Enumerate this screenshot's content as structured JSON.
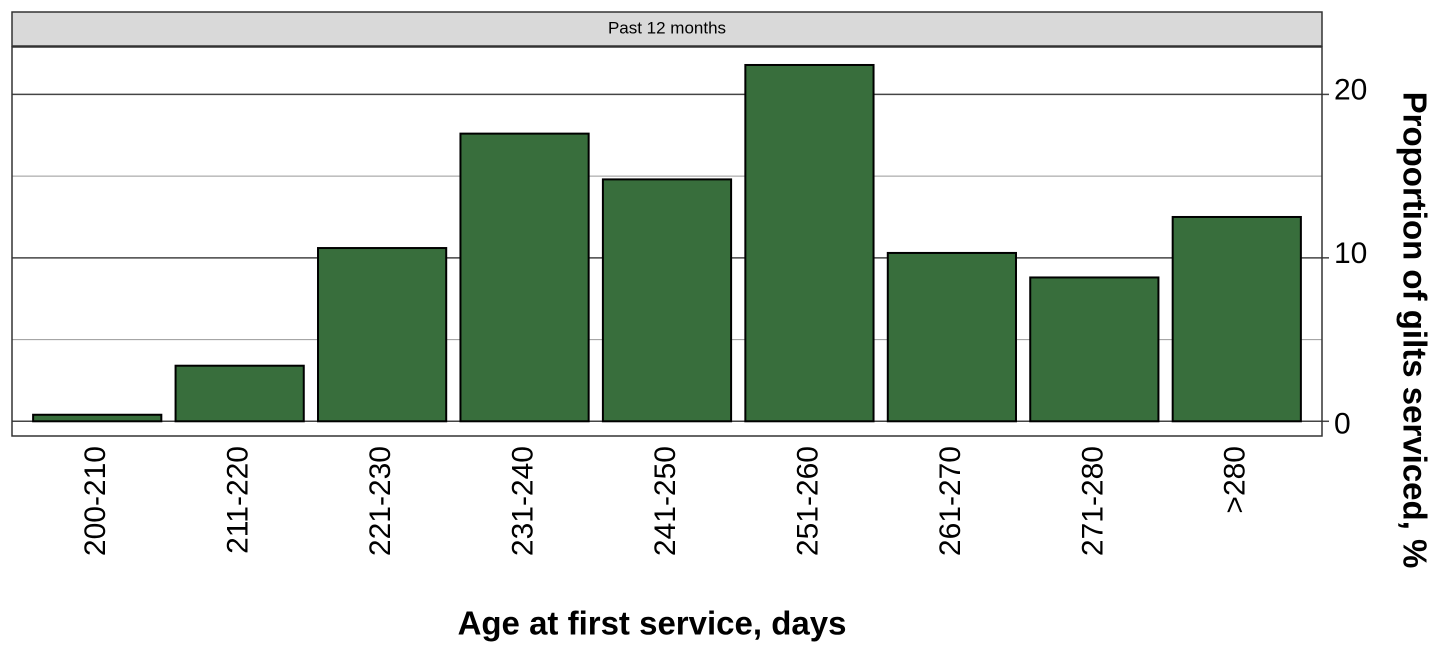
{
  "chart_data": {
    "type": "bar",
    "facet_label": "Past 12 months",
    "x_label": "Age at first service, days",
    "y_label": "Proportion of gilts serviced, %",
    "categories": [
      "200-210",
      "211-220",
      "221-230",
      "231-240",
      "241-250",
      "251-260",
      "261-270",
      "271-280",
      ">280"
    ],
    "values": [
      0.4,
      3.4,
      10.6,
      17.6,
      14.8,
      21.8,
      10.3,
      8.8,
      12.5
    ],
    "color": "#386e3c",
    "ylim": [
      -0.9,
      22.9
    ],
    "yticks": [
      0,
      10,
      20
    ],
    "y_minor_grid": [
      5,
      15
    ],
    "grid": true,
    "y_axis_side": "right"
  }
}
